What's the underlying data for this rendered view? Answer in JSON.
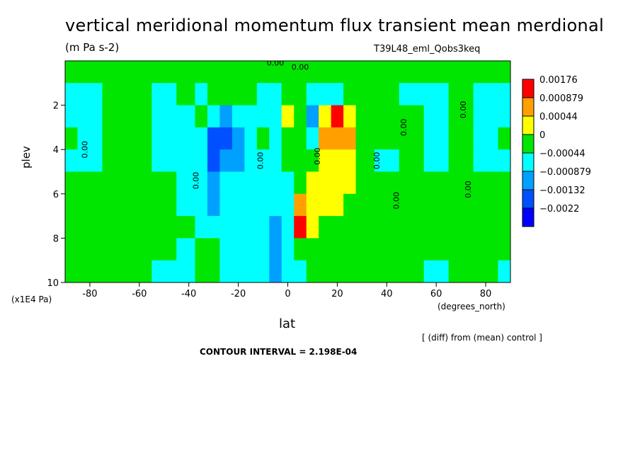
{
  "chart_data": {
    "type": "heatmap",
    "title": "vertical meridional momentum flux transient mean merdional",
    "subtitle": "(m Pa s-2)",
    "experiment": "T39L48_eml_Qobs3keq",
    "xlabel": "lat",
    "xunits": "(degrees_north)",
    "ylabel": "plev",
    "yscale": "(x1E4 Pa)",
    "note": "[ (diff) from (mean) control ]",
    "contour_interval": "CONTOUR INTERVAL = 2.198E-04",
    "xlim": [
      -90,
      90
    ],
    "ylim": [
      10,
      0
    ],
    "x_ticks": [
      -80,
      -60,
      -40,
      -20,
      0,
      20,
      40,
      60,
      80
    ],
    "x_tick_labels": [
      "-80",
      "-60",
      "-40",
      "-20",
      "0",
      "20",
      "40",
      "60",
      "80"
    ],
    "y_ticks": [
      2,
      4,
      6,
      8,
      10
    ],
    "y_tick_labels": [
      "2",
      "4",
      "6",
      "8",
      "10"
    ],
    "legend": {
      "placement": "right",
      "entries": [
        {
          "label": "0.00176",
          "color": "#ff0000"
        },
        {
          "label": "0.000879",
          "color": "#ffa000"
        },
        {
          "label": "0.00044",
          "color": "#ffff00"
        },
        {
          "label": "0",
          "color": "#00e600"
        },
        {
          "label": "−0.00044",
          "color": "#00ffff"
        },
        {
          "label": "−0.000879",
          "color": "#00a0ff"
        },
        {
          "label": "−0.00132",
          "color": "#0050ff"
        },
        {
          "label": "−0.0022",
          "color": "#0000ff"
        }
      ]
    },
    "levels": [
      -0.0022,
      -0.00132,
      -0.000879,
      -0.00044,
      0,
      0.00044,
      0.000879,
      0.00176
    ],
    "contour_labels": [
      "0.00"
    ],
    "x": [
      -90,
      -80,
      -70,
      -60,
      -50,
      -40,
      -35,
      -30,
      -25,
      -20,
      -15,
      -10,
      -5,
      0,
      5,
      10,
      15,
      20,
      25,
      30,
      40,
      50,
      60,
      70,
      80,
      90
    ],
    "y": [
      0.5,
      1.5,
      2.5,
      3.5,
      4.5,
      5.5,
      6.5,
      7.5,
      8.5,
      9.5
    ],
    "z": [
      [
        0.0001,
        0.0002,
        0.0001,
        0.0002,
        0.0001,
        0.0002,
        0.0001,
        0.0002,
        0.0001,
        0.0002,
        0.0001,
        0.0002,
        0.0001,
        0.0002,
        0.0001,
        0.0002,
        0.0001,
        0.0002,
        0.0001,
        0.0002,
        0.0001,
        0.0002,
        0.0001,
        0.0002,
        0.0001,
        0.0002
      ],
      [
        -0.0002,
        -0.0002,
        0.0002,
        0.0002,
        -0.0002,
        0.0002,
        -0.0002,
        0.0002,
        0.0002,
        0.0002,
        0.0002,
        -0.0002,
        -0.0003,
        0.0004,
        0.0003,
        -0.0002,
        -0.0001,
        -0.0002,
        0.0002,
        0.0002,
        0.0002,
        -0.0002,
        -0.0002,
        0.0002,
        -0.0002,
        -0.0002
      ],
      [
        -0.0002,
        -0.0001,
        0.0002,
        0.0002,
        -0.0002,
        -0.0002,
        0.0001,
        -0.0004,
        -0.0005,
        -0.0001,
        -0.0002,
        -0.0001,
        -0.0004,
        0.0006,
        0.0004,
        -0.0005,
        0.0005,
        0.0018,
        0.0005,
        0.0002,
        0.0002,
        0.0002,
        -0.0002,
        0.0002,
        -0.0001,
        -0.0002
      ],
      [
        0.0001,
        -0.0002,
        0.0001,
        0.0002,
        -0.0002,
        -0.0002,
        -0.0004,
        -0.0009,
        -0.0012,
        -0.0006,
        -0.0003,
        0.0001,
        -0.0003,
        0.0002,
        0.0003,
        -0.0004,
        0.0009,
        0.001,
        0.0012,
        0.0002,
        0.0002,
        0.0002,
        -0.0002,
        0.0002,
        -0.0001,
        0.0004
      ],
      [
        -0.0002,
        -0.0002,
        0.0001,
        0.0002,
        -0.0002,
        -0.0002,
        -0.0004,
        -0.0009,
        -0.0006,
        -0.0005,
        -0.0001,
        -0.0002,
        -0.0003,
        0.0002,
        0.0002,
        0.0002,
        0.0006,
        0.0006,
        0.0005,
        0.0003,
        -0.0002,
        0.0002,
        -0.0002,
        0.0002,
        -0.0002,
        -0.0002
      ],
      [
        0.0002,
        0.0002,
        0.0002,
        0.0002,
        0.0001,
        -0.0002,
        -0.0003,
        -0.0005,
        -0.0004,
        -0.0002,
        -0.0002,
        -0.0003,
        -0.0002,
        -0.0001,
        0.0003,
        0.0006,
        0.0007,
        0.0006,
        0.0005,
        0.0002,
        0.0002,
        0.0002,
        0.0002,
        0.0002,
        0.0002,
        0.0002
      ],
      [
        0.0002,
        0.0002,
        0.0002,
        0.0002,
        0.0002,
        -0.0001,
        -0.0003,
        -0.0005,
        -0.0004,
        -0.0003,
        -0.0002,
        -0.0002,
        -0.0004,
        -0.0001,
        0.0016,
        0.0008,
        0.0007,
        0.0005,
        0.0003,
        0.0002,
        0.0002,
        0.0002,
        0.0002,
        0.0002,
        0.0002,
        0.0002
      ],
      [
        0.0002,
        0.0002,
        0.0002,
        0.0002,
        0.0002,
        0.0002,
        -0.0002,
        -0.0002,
        -0.0002,
        -0.0002,
        -0.0002,
        -0.0003,
        -0.0005,
        -0.0002,
        0.0018,
        0.0008,
        0.0003,
        0.0003,
        0.0002,
        0.0002,
        0.0002,
        0.0002,
        0.0002,
        0.0002,
        0.0002,
        0.0002
      ],
      [
        0.0002,
        0.0002,
        0.0002,
        0.0002,
        0.0002,
        -0.0002,
        0.0002,
        0.0002,
        -0.0002,
        -0.0002,
        -0.0002,
        -0.0002,
        -0.0005,
        -0.0003,
        0.0003,
        0.0002,
        0.0002,
        0.0002,
        0.0002,
        0.0002,
        0.0002,
        0.0002,
        0.0002,
        0.0002,
        0.0002,
        0.0002
      ],
      [
        0.0002,
        0.0002,
        0.0002,
        0.0002,
        -0.0002,
        -0.0002,
        0.0002,
        0.0002,
        -0.0002,
        -0.0002,
        -0.0002,
        -0.0003,
        -0.0005,
        -0.0003,
        -0.0002,
        0.0002,
        0.0002,
        0.0002,
        0.0002,
        0.0002,
        0.0002,
        0.0002,
        -0.0002,
        0.0002,
        0.0002,
        -0.0002
      ]
    ],
    "grid": false
  }
}
